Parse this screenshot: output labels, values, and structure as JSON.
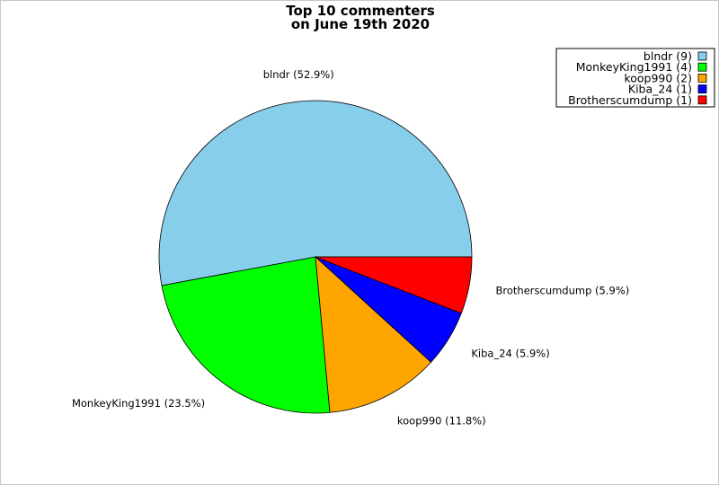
{
  "chart_data": {
    "type": "pie",
    "title": "Top 10 commenters",
    "subtitle": "on June 19th 2020",
    "categories": [
      "blndr",
      "MonkeyKing1991",
      "koop990",
      "Kiba_24",
      "Brotherscumdump"
    ],
    "values": [
      9,
      4,
      2,
      1,
      1
    ],
    "percent_labels": [
      "52.9%",
      "23.5%",
      "11.8%",
      "5.9%",
      "5.9%"
    ],
    "slice_labels": [
      "blndr (52.9%)",
      "MonkeyKing1991 (23.5%)",
      "koop990 (11.8%)",
      "Kiba_24 (5.9%)",
      "Brotherscumdump (5.9%)"
    ],
    "legend_entries": [
      "blndr (9)",
      "MonkeyKing1991 (4)",
      "koop990 (2)",
      "Kiba_24 (1)",
      "Brotherscumdump (1)"
    ],
    "colors": [
      "#87ceeb",
      "#00ff00",
      "#ffa500",
      "#0000ff",
      "#ff0000"
    ],
    "legend_position": "top-right"
  }
}
